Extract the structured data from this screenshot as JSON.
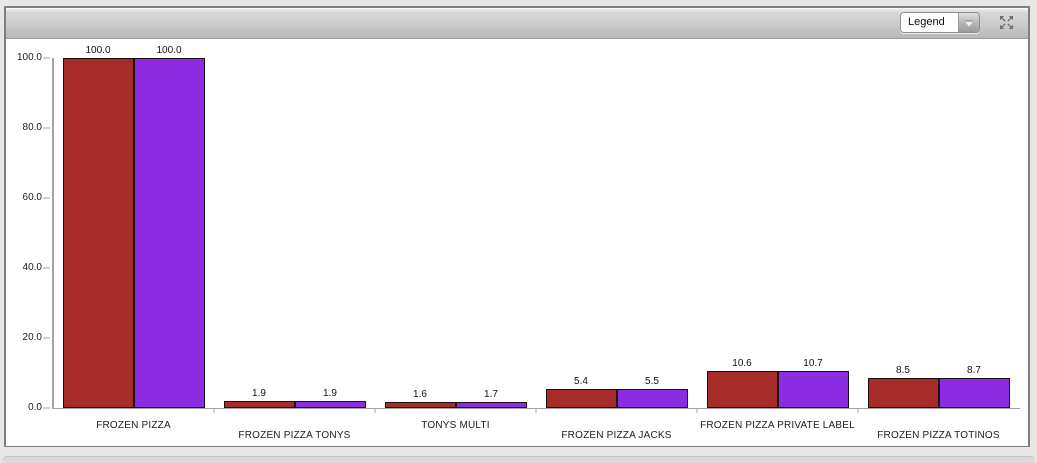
{
  "toolbar": {
    "legend_label": "Legend",
    "expand_icon": "expand-arrows-icon",
    "dropdown_icon": "chevron-down-icon"
  },
  "chart_data": {
    "type": "bar",
    "title": "",
    "xlabel": "",
    "ylabel": "",
    "categories": [
      "FROZEN PIZZA",
      "FROZEN PIZZA TONYS",
      "TONYS MULTI",
      "FROZEN PIZZA JACKS",
      "FROZEN PIZZA PRIVATE LABEL",
      "FROZEN PIZZA TOTINOS"
    ],
    "series": [
      {
        "name": "series-red",
        "color": "#a52c28",
        "values": [
          100.0,
          1.9,
          1.6,
          5.4,
          10.6,
          8.5
        ]
      },
      {
        "name": "series-purple",
        "color": "#8b2be2",
        "values": [
          100.0,
          1.9,
          1.7,
          5.5,
          10.7,
          8.7
        ]
      }
    ],
    "value_label_decimals": 1,
    "ylim": [
      0,
      100
    ],
    "yticks": [
      0,
      20,
      40,
      60,
      80,
      100
    ],
    "ytick_decimals": 1,
    "grid": false,
    "legend_position": "collapsed-dropdown",
    "bar_border_color": "#1c1010",
    "axis_color": "#a3a3a3",
    "tick_color": "#c3d4e2",
    "category_labels_staggered": true
  }
}
